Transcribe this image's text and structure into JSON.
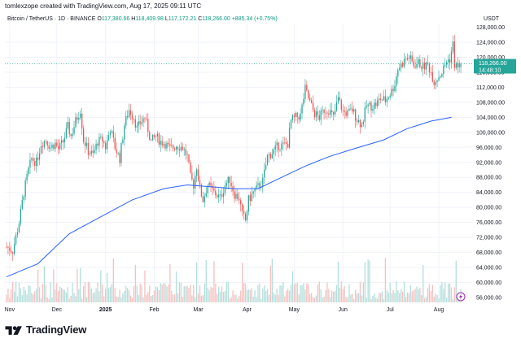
{
  "header": {
    "author_line": "tomlexzope created with TradingView.com, Aug 17, 2025 09:11 UTC"
  },
  "symbol": {
    "name": "Bitcoin / TetherUS · 1D · BINANCE",
    "open_label": "O",
    "open": "117,380.66",
    "high_label": "H",
    "high": "118,409.98",
    "low_label": "L",
    "low": "117,172.21",
    "close_label": "C",
    "close": "118,266.00",
    "change": "+885.34 (+0.75%)"
  },
  "currency": "USDT",
  "price_tag": {
    "price": "118,266.00",
    "countdown": "14:48:10"
  },
  "footer": {
    "brand": "TradingView"
  },
  "colors": {
    "up": "#26a69a",
    "down": "#ef5350",
    "ma": "#2962ff",
    "tag": "#26a69a",
    "up_volume": "#b2dfdb",
    "down_volume": "#f7c0bf",
    "event_icon": "#9c27b0"
  },
  "chart_data": {
    "type": "candlestick",
    "y_axis": {
      "labels": [
        "124,000.00",
        "120,000.00",
        "116,000.00",
        "112,000.00",
        "108,000.00",
        "104,000.00",
        "100,000.00",
        "96,000.00",
        "92,000.00",
        "88,000.00",
        "84,000.00",
        "80,000.00",
        "76,000.00",
        "72,000.00",
        "68,000.00",
        "64,000.00",
        "60,000.00",
        "56,000.00"
      ],
      "values": [
        124000,
        120000,
        116000,
        112000,
        108000,
        104000,
        100000,
        96000,
        92000,
        88000,
        84000,
        80000,
        76000,
        72000,
        68000,
        64000,
        60000,
        56000
      ],
      "partial_top_label": "128,000.00"
    },
    "x_axis": {
      "labels": [
        "Nov",
        "Dec",
        "2025",
        "Feb",
        "Mar",
        "Apr",
        "May",
        "Jun",
        "Jul",
        "Aug"
      ],
      "day_index": [
        2,
        32,
        63,
        94,
        122,
        153,
        183,
        214,
        244,
        275
      ]
    },
    "price_path": [
      [
        0,
        69500
      ],
      [
        4,
        68500
      ],
      [
        8,
        76000
      ],
      [
        11,
        84000
      ],
      [
        14,
        90000
      ],
      [
        16,
        93000
      ],
      [
        19,
        92000
      ],
      [
        22,
        97000
      ],
      [
        25,
        98000
      ],
      [
        28,
        96000
      ],
      [
        31,
        97000
      ],
      [
        33,
        95500
      ],
      [
        36,
        97500
      ],
      [
        39,
        101500
      ],
      [
        41,
        99000
      ],
      [
        44,
        103000
      ],
      [
        47,
        106000
      ],
      [
        49,
        98000
      ],
      [
        52,
        95000
      ],
      [
        55,
        94000
      ],
      [
        58,
        97500
      ],
      [
        61,
        98000
      ],
      [
        63,
        96000
      ],
      [
        66,
        101000
      ],
      [
        69,
        96000
      ],
      [
        72,
        93000
      ],
      [
        75,
        102000
      ],
      [
        78,
        106000
      ],
      [
        81,
        104000
      ],
      [
        83,
        101000
      ],
      [
        85,
        102500
      ],
      [
        88,
        104000
      ],
      [
        92,
        97500
      ],
      [
        95,
        99000
      ],
      [
        98,
        97500
      ],
      [
        101,
        97000
      ],
      [
        104,
        95500
      ],
      [
        108,
        96500
      ],
      [
        112,
        96000
      ],
      [
        115,
        93500
      ],
      [
        117,
        88000
      ],
      [
        119,
        86000
      ],
      [
        121,
        91000
      ],
      [
        123,
        85000
      ],
      [
        125,
        82000
      ],
      [
        128,
        86000
      ],
      [
        132,
        84000
      ],
      [
        136,
        82500
      ],
      [
        139,
        86000
      ],
      [
        142,
        87500
      ],
      [
        145,
        83500
      ],
      [
        148,
        82500
      ],
      [
        150,
        78000
      ],
      [
        152,
        76500
      ],
      [
        154,
        82000
      ],
      [
        157,
        84000
      ],
      [
        160,
        85500
      ],
      [
        163,
        87000
      ],
      [
        166,
        93500
      ],
      [
        170,
        95000
      ],
      [
        173,
        96500
      ],
      [
        176,
        96500
      ],
      [
        179,
        97000
      ],
      [
        181,
        103000
      ],
      [
        184,
        104000
      ],
      [
        187,
        104500
      ],
      [
        190,
        111500
      ],
      [
        193,
        108000
      ],
      [
        196,
        105000
      ],
      [
        199,
        104000
      ],
      [
        202,
        106000
      ],
      [
        205,
        106000
      ],
      [
        208,
        104000
      ],
      [
        211,
        109000
      ],
      [
        214,
        105500
      ],
      [
        217,
        105000
      ],
      [
        220,
        106000
      ],
      [
        223,
        103500
      ],
      [
        226,
        102000
      ],
      [
        229,
        107000
      ],
      [
        232,
        107000
      ],
      [
        235,
        107500
      ],
      [
        238,
        109000
      ],
      [
        241,
        108500
      ],
      [
        245,
        111000
      ],
      [
        247,
        113000
      ],
      [
        249,
        117000
      ],
      [
        251,
        118000
      ],
      [
        254,
        119500
      ],
      [
        256,
        120000
      ],
      [
        259,
        118000
      ],
      [
        262,
        118500
      ],
      [
        265,
        117500
      ],
      [
        268,
        118000
      ],
      [
        270,
        116000
      ],
      [
        272,
        113500
      ],
      [
        274,
        114500
      ],
      [
        277,
        116000
      ],
      [
        280,
        119000
      ],
      [
        282,
        119500
      ],
      [
        284,
        123500
      ],
      [
        285,
        118000
      ],
      [
        287,
        117400
      ],
      [
        289,
        118266
      ]
    ],
    "moving_average": {
      "points": [
        [
          0,
          61500
        ],
        [
          20,
          65000
        ],
        [
          40,
          73000
        ],
        [
          60,
          77500
        ],
        [
          80,
          82000
        ],
        [
          100,
          85000
        ],
        [
          115,
          86000
        ],
        [
          130,
          85500
        ],
        [
          145,
          85000
        ],
        [
          160,
          85000
        ],
        [
          175,
          88000
        ],
        [
          190,
          91000
        ],
        [
          205,
          93500
        ],
        [
          220,
          95500
        ],
        [
          240,
          98000
        ],
        [
          255,
          101000
        ],
        [
          270,
          103000
        ],
        [
          283,
          104000
        ]
      ]
    },
    "last_price": 118266.0,
    "ohlc_last": {
      "open": 117380.66,
      "high": 118409.98,
      "low": 117172.21,
      "close": 118266.0,
      "change": 885.34,
      "change_pct": 0.75
    },
    "volume": {
      "description": "volume histogram along bottom, up/down colored"
    }
  }
}
